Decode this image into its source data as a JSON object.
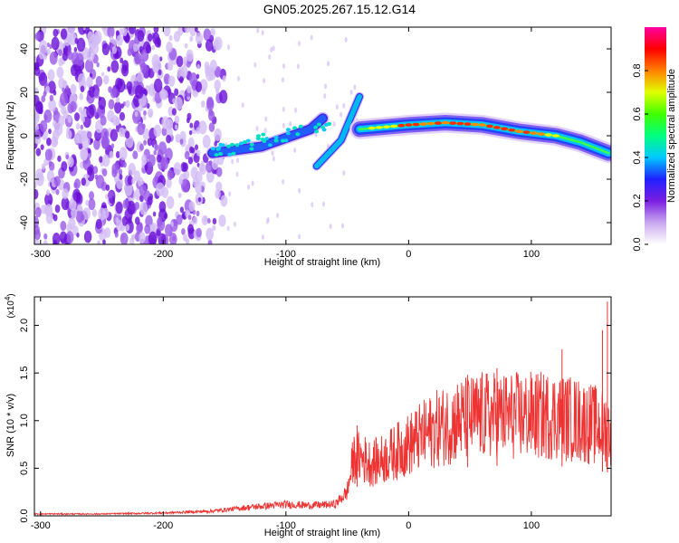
{
  "title": "GN05.2025.267.15.12.G14",
  "chart_data": [
    {
      "type": "heatmap",
      "name": "spectrogram",
      "xlabel": "Height of straight line (km)",
      "ylabel": "Frequency (Hz)",
      "xlim": [
        -305,
        165
      ],
      "ylim": [
        -50,
        50
      ],
      "xticks": [
        -300,
        -200,
        -100,
        0,
        100
      ],
      "yticks": [
        -40,
        -20,
        0,
        20,
        40
      ],
      "colorbar": {
        "label": "Normalized spectral amplitude",
        "range": [
          0,
          1
        ],
        "ticks": [
          0.0,
          0.2,
          0.4,
          0.6,
          0.8
        ],
        "stops": [
          "#ffffff",
          "#c8a8f0",
          "#7a1ee0",
          "#2020ff",
          "#00c8ff",
          "#00ff80",
          "#40ff00",
          "#e0ff00",
          "#ff8000",
          "#ff0000",
          "#ff00a0"
        ]
      },
      "ridge": [
        {
          "x": -160,
          "y": -8
        },
        {
          "x": -120,
          "y": -5
        },
        {
          "x": -80,
          "y": 3
        },
        {
          "x": -70,
          "y": 8
        },
        {
          "x": -75,
          "y": -14
        },
        {
          "x": -55,
          "y": -2
        },
        {
          "x": -40,
          "y": 18
        },
        {
          "x": -40,
          "y": 3
        },
        {
          "x": 0,
          "y": 5
        },
        {
          "x": 30,
          "y": 6
        },
        {
          "x": 60,
          "y": 5
        },
        {
          "x": 90,
          "y": 2
        },
        {
          "x": 120,
          "y": 0
        },
        {
          "x": 140,
          "y": -3
        },
        {
          "x": 163,
          "y": -8
        }
      ]
    },
    {
      "type": "line",
      "name": "snr",
      "xlabel": "Height of straight line (km)",
      "ylabel": "SNR (10 * v/v)",
      "y_multiplier": "(x10",
      "y_multiplier_exp": "4",
      "xlim": [
        -305,
        165
      ],
      "ylim": [
        0,
        2.3
      ],
      "xticks": [
        -300,
        -200,
        -100,
        0,
        100
      ],
      "yticks": [
        "0.0",
        "0.5",
        "1.0",
        "1.5",
        "2.0"
      ],
      "color": "#ee3333",
      "envelope": [
        {
          "x": -305,
          "y": 0.02
        },
        {
          "x": -250,
          "y": 0.02
        },
        {
          "x": -200,
          "y": 0.03
        },
        {
          "x": -160,
          "y": 0.05
        },
        {
          "x": -130,
          "y": 0.09
        },
        {
          "x": -100,
          "y": 0.12
        },
        {
          "x": -80,
          "y": 0.11
        },
        {
          "x": -60,
          "y": 0.12
        },
        {
          "x": -50,
          "y": 0.25
        },
        {
          "x": -45,
          "y": 0.6
        },
        {
          "x": -40,
          "y": 0.62
        },
        {
          "x": -30,
          "y": 0.55
        },
        {
          "x": -20,
          "y": 0.6
        },
        {
          "x": 0,
          "y": 0.75
        },
        {
          "x": 20,
          "y": 0.9
        },
        {
          "x": 40,
          "y": 1.0
        },
        {
          "x": 60,
          "y": 1.05
        },
        {
          "x": 80,
          "y": 1.05
        },
        {
          "x": 100,
          "y": 1.05
        },
        {
          "x": 120,
          "y": 1.05
        },
        {
          "x": 140,
          "y": 1.0
        },
        {
          "x": 165,
          "y": 0.9
        }
      ],
      "peaks": [
        {
          "x": -42,
          "y": 0.95
        },
        {
          "x": 48,
          "y": 1.48
        },
        {
          "x": 72,
          "y": 1.55
        },
        {
          "x": 125,
          "y": 1.75
        },
        {
          "x": 158,
          "y": 1.95
        },
        {
          "x": 162,
          "y": 2.25
        }
      ]
    }
  ]
}
